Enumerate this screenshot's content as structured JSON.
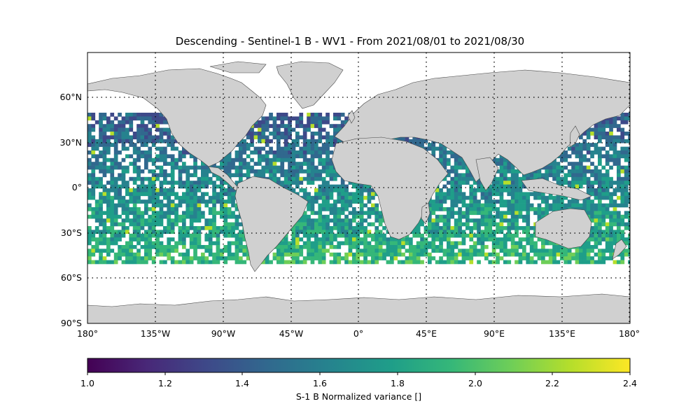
{
  "map": {
    "title": "Descending - Sentinel-1 B - WV1 - From 2021/08/01 to 2021/08/30",
    "lon_ticks": [
      "180°",
      "135°W",
      "90°W",
      "45°W",
      "0°",
      "45°E",
      "90°E",
      "135°E",
      "180°"
    ],
    "lat_ticks": [
      "60°N",
      "30°N",
      "0°",
      "30°S",
      "60°S",
      "90°S"
    ],
    "extent": {
      "lon": [
        -180,
        180
      ],
      "lat": [
        -90,
        90
      ]
    },
    "gridlines": "dotted",
    "land_color": "#d0d0d0",
    "ocean_color": "#ffffff",
    "data_lat_range": [
      -50,
      50
    ]
  },
  "colorbar": {
    "label": "S-1 B Normalized variance []",
    "colormap": "viridis",
    "range": [
      1.0,
      2.4
    ],
    "ticks": [
      "1.0",
      "1.2",
      "1.4",
      "1.6",
      "1.8",
      "2.0",
      "2.2",
      "2.4"
    ],
    "colors": [
      "#440154",
      "#482878",
      "#3e4989",
      "#31688e",
      "#26828e",
      "#1f9e89",
      "#35b779",
      "#6ece58",
      "#b5de2b",
      "#fde725"
    ]
  }
}
